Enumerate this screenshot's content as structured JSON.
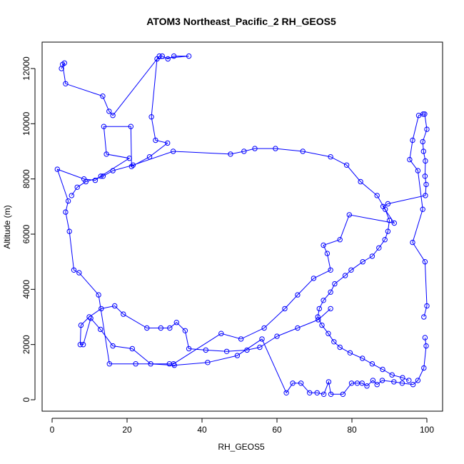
{
  "chart_data": {
    "type": "line",
    "title": "ATOM3 Northeast_Pacific_2 RH_GEOS5",
    "xlabel": "RH_GEOS5",
    "ylabel": "Altitude (m)",
    "xlim": [
      0,
      100
    ],
    "ylim": [
      0,
      12500
    ],
    "x_ticks": [
      0,
      20,
      40,
      60,
      80,
      100
    ],
    "y_ticks": [
      0,
      2000,
      4000,
      6000,
      8000,
      10000,
      12000
    ],
    "grid": false,
    "legend": "none",
    "marker": "open-circle",
    "color": "#0000ff",
    "series": [
      {
        "x": [
          2.5,
          3.3,
          2.8,
          3.6,
          13.5,
          15.2,
          16.2,
          28.6,
          29.4,
          30.9,
          32.5,
          36.5,
          28.0,
          26.5,
          27.6,
          30.8,
          26.0,
          21.2,
          21.0,
          13.8,
          14.5,
          20.6,
          13.0,
          11.5,
          8.5,
          1.4,
          4.3,
          3.6,
          4.6,
          5.8,
          7.2,
          12.4,
          15.3,
          22.3,
          31.3,
          32.4,
          45.1,
          50.4,
          56.6,
          62.1,
          65.5,
          69.8,
          74.3,
          73.4,
          72.4,
          76.8,
          79.3,
          91.3,
          88.3,
          89.6,
          99.6,
          99.8,
          99.5,
          99.6,
          99.1,
          98.9,
          100.0,
          99.4,
          99.0,
          97.8,
          96.2,
          95.4,
          97.6,
          98.9,
          96.2,
          99.5,
          100.0,
          99.2
        ],
        "y": [
          12000,
          12200,
          12150,
          11450,
          11000,
          10450,
          10300,
          12450,
          12450,
          12350,
          12450,
          12450,
          12350,
          10250,
          9400,
          9300,
          8800,
          8450,
          9900,
          9900,
          8900,
          8750,
          8100,
          7950,
          8000,
          8350,
          7200,
          6800,
          6100,
          4700,
          4600,
          3800,
          1300,
          1300,
          1300,
          1300,
          2400,
          2200,
          2600,
          3300,
          3800,
          4400,
          4700,
          5300,
          5600,
          5800,
          6700,
          6400,
          7000,
          7100,
          7400,
          7800,
          8100,
          8650,
          9000,
          9350,
          9800,
          10350,
          10350,
          10300,
          9400,
          8700,
          8300,
          6900,
          5700,
          5000,
          3400,
          3000
        ]
      },
      {
        "x": [
          99.5,
          99.8,
          99.2,
          97.6,
          96.3,
          93.4,
          91.2,
          88.1,
          86.7,
          85.6,
          84.0,
          82.7,
          81.4,
          79.9,
          77.6,
          74.4,
          73.8,
          72.5,
          70.7,
          68.7,
          66.4,
          64.2,
          62.5,
          56.0,
          49.4,
          41.5,
          32.6,
          26.3,
          21.4,
          16.2,
          12.9,
          10.3,
          8.3,
          7.5,
          7.7,
          9.9,
          13.1,
          16.7,
          19.0,
          25.3,
          29.0,
          31.4,
          33.2,
          35.5,
          36.5,
          41.0,
          46.6,
          52.0,
          55.4,
          60.0,
          65.5,
          71.0,
          74.3
        ],
        "y": [
          2250,
          1950,
          1150,
          700,
          550,
          600,
          650,
          700,
          550,
          700,
          500,
          600,
          600,
          600,
          200,
          200,
          650,
          200,
          250,
          250,
          600,
          600,
          250,
          2200,
          1600,
          1350,
          1250,
          1300,
          1850,
          1950,
          2550,
          2950,
          2000,
          2000,
          2700,
          3000,
          3300,
          3400,
          3100,
          2600,
          2600,
          2600,
          2800,
          2500,
          1850,
          1800,
          1750,
          1800,
          1900,
          2300,
          2600,
          2900,
          3300
        ]
      },
      {
        "x": [
          5.2,
          6.7,
          9.0,
          13.6,
          16.2,
          21.6,
          32.3,
          47.6,
          51.2,
          54.1,
          59.6,
          66.9,
          74.3,
          78.6,
          82.3,
          86.7,
          88.9,
          90.0,
          89.6,
          88.8,
          87.2,
          85.4,
          82.9,
          79.8,
          78.2,
          75.4,
          74.3,
          72.4,
          71.3,
          70.9,
          72.0,
          73.7,
          75.2,
          76.8,
          79.5,
          82.8,
          85.4,
          88.2,
          90.7,
          93.5,
          95.2
        ],
        "y": [
          7400,
          7700,
          7900,
          8100,
          8300,
          8500,
          9000,
          8900,
          9000,
          9100,
          9100,
          9000,
          8800,
          8500,
          7900,
          7400,
          6900,
          6500,
          6100,
          5800,
          5500,
          5200,
          5000,
          4700,
          4500,
          4200,
          3900,
          3600,
          3300,
          3000,
          2700,
          2400,
          2100,
          1900,
          1700,
          1500,
          1300,
          1100,
          900,
          800,
          700
        ]
      }
    ]
  }
}
